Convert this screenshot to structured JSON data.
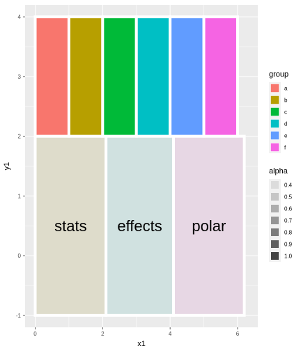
{
  "chart_data": {
    "type": "bar",
    "xlabel": "x1",
    "ylabel": "y1",
    "xlim": [
      -0.3,
      6.6
    ],
    "ylim": [
      -1.2,
      4.2
    ],
    "x_ticks": [
      0,
      2,
      4,
      6
    ],
    "y_ticks": [
      -1,
      0,
      1,
      2,
      3,
      4
    ],
    "grid": true,
    "border_color": "#ffffff",
    "bars": [
      {
        "group": "a",
        "x0": 0,
        "x1": 1,
        "y0": 2,
        "y1": 4,
        "color": "#F8766D"
      },
      {
        "group": "b",
        "x0": 1,
        "x1": 2,
        "y0": 2,
        "y1": 4,
        "color": "#B79F00"
      },
      {
        "group": "c",
        "x0": 2,
        "x1": 3,
        "y0": 2,
        "y1": 4,
        "color": "#00BA38"
      },
      {
        "group": "d",
        "x0": 3,
        "x1": 4,
        "y0": 2,
        "y1": 4,
        "color": "#00BFC4"
      },
      {
        "group": "e",
        "x0": 4,
        "x1": 5,
        "y0": 2,
        "y1": 4,
        "color": "#619CFF"
      },
      {
        "group": "f",
        "x0": 5,
        "x1": 6,
        "y0": 2,
        "y1": 4,
        "color": "#F564E3"
      }
    ],
    "regions": [
      {
        "label": "stats",
        "x0": 0,
        "x1": 2.1,
        "y0": -1,
        "y1": 2,
        "fill": "#DEDCCB"
      },
      {
        "label": "effects",
        "x0": 2.1,
        "x1": 4.1,
        "y0": -1,
        "y1": 2,
        "fill": "#D0E1E0"
      },
      {
        "label": "polar",
        "x0": 4.1,
        "x1": 6.2,
        "y0": -1,
        "y1": 2,
        "fill": "#E7D7E4"
      }
    ],
    "legend_placement": "right",
    "legends": [
      {
        "title": "group",
        "items": [
          {
            "label": "a",
            "color": "#F8766D"
          },
          {
            "label": "b",
            "color": "#B79F00"
          },
          {
            "label": "c",
            "color": "#00BA38"
          },
          {
            "label": "d",
            "color": "#00BFC4"
          },
          {
            "label": "e",
            "color": "#619CFF"
          },
          {
            "label": "f",
            "color": "#F564E3"
          }
        ]
      },
      {
        "title": "alpha",
        "items": [
          {
            "label": "0.4",
            "color": "#DCDCDC"
          },
          {
            "label": "0.5",
            "color": "#C6C6C6"
          },
          {
            "label": "0.6",
            "color": "#ADADAD"
          },
          {
            "label": "0.7",
            "color": "#959595"
          },
          {
            "label": "0.8",
            "color": "#7B7B7B"
          },
          {
            "label": "0.9",
            "color": "#5F5F5F"
          },
          {
            "label": "1.0",
            "color": "#444444"
          }
        ]
      }
    ]
  }
}
